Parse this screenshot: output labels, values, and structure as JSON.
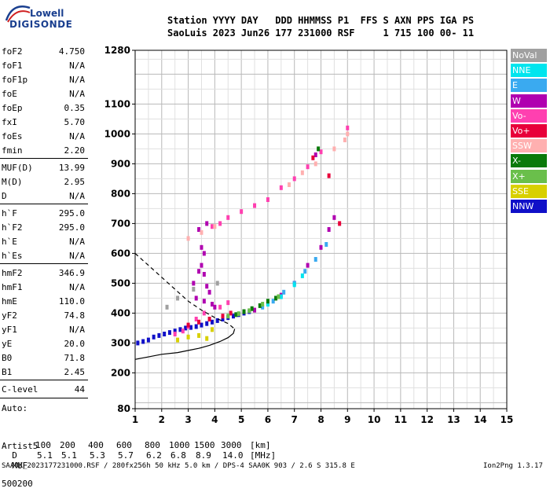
{
  "logo": {
    "top": "Lowell",
    "bottom": "DIGISONDE"
  },
  "header": {
    "line1": "Station YYYY DAY   DDD HHMMSS P1  FFS S AXN PPS IGA PS",
    "line2": "SaoLuis 2023 Jun26 177 231000 RSF     1 715 100 00- 11"
  },
  "params": [
    {
      "name": "foF2",
      "value": "4.750"
    },
    {
      "name": "foF1",
      "value": "N/A"
    },
    {
      "name": "foF1p",
      "value": "N/A"
    },
    {
      "name": "foE",
      "value": "N/A"
    },
    {
      "name": "foEp",
      "value": "0.35"
    },
    {
      "name": "fxI",
      "value": "5.70"
    },
    {
      "name": "foEs",
      "value": "N/A"
    },
    {
      "name": "fmin",
      "value": "2.20"
    },
    {
      "name": "MUF(D)",
      "value": "13.99"
    },
    {
      "name": "M(D)",
      "value": "2.95"
    },
    {
      "name": "D",
      "value": "N/A"
    },
    {
      "name": "h`F",
      "value": "295.0"
    },
    {
      "name": "h`F2",
      "value": "295.0"
    },
    {
      "name": "h`E",
      "value": "N/A"
    },
    {
      "name": "h`Es",
      "value": "N/A"
    },
    {
      "name": "hmF2",
      "value": "346.9"
    },
    {
      "name": "hmF1",
      "value": "N/A"
    },
    {
      "name": "hmE",
      "value": "110.0"
    },
    {
      "name": "yF2",
      "value": "74.8"
    },
    {
      "name": "yF1",
      "value": "N/A"
    },
    {
      "name": "yE",
      "value": "20.0"
    },
    {
      "name": "B0",
      "value": "71.8"
    },
    {
      "name": "B1",
      "value": "2.45"
    },
    {
      "name": "C-level",
      "value": "44"
    }
  ],
  "auto": {
    "line1": "Auto:",
    "line2": "Artist5",
    "line3": "500200"
  },
  "legend": [
    {
      "label": "NoVal",
      "color": "#a0a0a0"
    },
    {
      "label": "NNE",
      "color": "#00e5ee"
    },
    {
      "label": "E",
      "color": "#3aaaf0"
    },
    {
      "label": "W",
      "color": "#b000b0"
    },
    {
      "label": "Vo-",
      "color": "#ff40b0"
    },
    {
      "label": "Vo+",
      "color": "#e8003a"
    },
    {
      "label": "SSW",
      "color": "#ffb0b0"
    },
    {
      "label": "X-",
      "color": "#0a7a0a"
    },
    {
      "label": "X+",
      "color": "#6abf4b"
    },
    {
      "label": "SSE",
      "color": "#d8d000"
    },
    {
      "label": "NNW",
      "color": "#1010c8"
    }
  ],
  "muf_table": {
    "d_label": "D",
    "d_values": [
      "100",
      "200",
      "400",
      "600",
      "800",
      "1000",
      "1500",
      "3000"
    ],
    "d_unit": "[km]",
    "muf_label": "MUF",
    "muf_values": [
      "5.1",
      "5.1",
      "5.3",
      "5.7",
      "6.2",
      "6.8",
      "8.9",
      "14.0"
    ],
    "muf_unit": "[MHz]"
  },
  "footer": {
    "left": "SAA0K_2023177231000.RSF / 280fx256h 50 kHz 5.0 km / DPS-4 SAA0K 903 / 2.6 S 315.8 E",
    "right": "Ion2Png 1.3.17"
  },
  "chart_data": {
    "type": "scatter",
    "title": "",
    "xlabel": "",
    "ylabel": "",
    "xlim": [
      1,
      15
    ],
    "ylim": [
      80,
      1280
    ],
    "x_ticks": [
      1,
      2,
      3,
      4,
      5,
      6,
      7,
      8,
      9,
      10,
      11,
      12,
      13,
      14,
      15
    ],
    "y_ticks": [
      80,
      200,
      300,
      400,
      500,
      600,
      700,
      800,
      900,
      1000,
      1100,
      1280
    ],
    "grid": true,
    "series": [
      {
        "color": "#1010c8",
        "points": [
          [
            1.1,
            300
          ],
          [
            1.3,
            305
          ],
          [
            1.5,
            310
          ],
          [
            1.7,
            320
          ],
          [
            1.9,
            325
          ],
          [
            2.1,
            330
          ],
          [
            2.3,
            335
          ],
          [
            2.5,
            340
          ],
          [
            2.7,
            345
          ],
          [
            2.9,
            350
          ],
          [
            3.1,
            352
          ],
          [
            3.3,
            355
          ],
          [
            3.5,
            360
          ],
          [
            3.7,
            365
          ],
          [
            3.9,
            370
          ],
          [
            4.1,
            375
          ],
          [
            4.3,
            380
          ],
          [
            4.5,
            385
          ],
          [
            4.7,
            390
          ],
          [
            4.9,
            395
          ],
          [
            5.1,
            400
          ],
          [
            5.3,
            405
          ]
        ]
      },
      {
        "color": "#b000b0",
        "points": [
          [
            3.2,
            500
          ],
          [
            3.4,
            540
          ],
          [
            3.5,
            560
          ],
          [
            3.6,
            530
          ],
          [
            3.7,
            490
          ],
          [
            3.8,
            470
          ],
          [
            3.3,
            450
          ],
          [
            3.6,
            440
          ],
          [
            3.9,
            430
          ],
          [
            4.0,
            420
          ],
          [
            3.5,
            620
          ],
          [
            3.6,
            600
          ],
          [
            3.7,
            700
          ],
          [
            3.4,
            680
          ],
          [
            7.8,
            930
          ],
          [
            5.5,
            410
          ],
          [
            6.0,
            430
          ],
          [
            6.5,
            460
          ],
          [
            7.0,
            500
          ],
          [
            7.5,
            560
          ],
          [
            8.0,
            620
          ],
          [
            8.3,
            680
          ],
          [
            8.5,
            720
          ]
        ]
      },
      {
        "color": "#ff40b0",
        "points": [
          [
            2.5,
            330
          ],
          [
            2.8,
            340
          ],
          [
            3.0,
            355
          ],
          [
            3.3,
            380
          ],
          [
            3.6,
            400
          ],
          [
            4.2,
            420
          ],
          [
            4.5,
            435
          ],
          [
            3.9,
            690
          ],
          [
            4.2,
            700
          ],
          [
            4.5,
            720
          ],
          [
            5.0,
            740
          ],
          [
            5.5,
            760
          ],
          [
            6.0,
            780
          ],
          [
            6.5,
            820
          ],
          [
            7.0,
            850
          ],
          [
            7.5,
            890
          ],
          [
            8.0,
            940
          ],
          [
            9.0,
            1020
          ]
        ]
      },
      {
        "color": "#e8003a",
        "points": [
          [
            3.0,
            360
          ],
          [
            3.4,
            370
          ],
          [
            3.8,
            380
          ],
          [
            4.3,
            390
          ],
          [
            4.6,
            400
          ],
          [
            7.7,
            920
          ],
          [
            8.3,
            860
          ],
          [
            8.7,
            700
          ]
        ]
      },
      {
        "color": "#3aaaf0",
        "points": [
          [
            5.8,
            420
          ],
          [
            6.2,
            440
          ],
          [
            6.6,
            470
          ],
          [
            7.0,
            500
          ],
          [
            7.4,
            540
          ],
          [
            7.8,
            580
          ],
          [
            8.2,
            630
          ]
        ]
      },
      {
        "color": "#00e5ee",
        "points": [
          [
            6.0,
            430
          ],
          [
            6.5,
            455
          ],
          [
            7.0,
            495
          ],
          [
            7.3,
            525
          ]
        ]
      },
      {
        "color": "#0a7a0a",
        "points": [
          [
            4.8,
            395
          ],
          [
            5.1,
            405
          ],
          [
            5.4,
            415
          ],
          [
            5.7,
            425
          ],
          [
            6.0,
            440
          ],
          [
            6.3,
            450
          ],
          [
            7.9,
            950
          ]
        ]
      },
      {
        "color": "#6abf4b",
        "points": [
          [
            4.5,
            390
          ],
          [
            4.9,
            398
          ],
          [
            5.3,
            408
          ],
          [
            5.8,
            430
          ],
          [
            6.4,
            455
          ]
        ]
      },
      {
        "color": "#d8d000",
        "points": [
          [
            2.6,
            310
          ],
          [
            3.0,
            320
          ],
          [
            3.4,
            325
          ],
          [
            3.7,
            315
          ],
          [
            3.9,
            345
          ]
        ]
      },
      {
        "color": "#ffb0b0",
        "points": [
          [
            3.0,
            650
          ],
          [
            3.5,
            670
          ],
          [
            4.0,
            690
          ],
          [
            6.8,
            830
          ],
          [
            7.3,
            870
          ],
          [
            7.8,
            900
          ],
          [
            8.5,
            950
          ],
          [
            8.9,
            980
          ],
          [
            9.0,
            1000
          ]
        ]
      },
      {
        "color": "#a0a0a0",
        "points": [
          [
            2.2,
            420
          ],
          [
            2.6,
            450
          ],
          [
            3.2,
            480
          ],
          [
            4.1,
            500
          ]
        ]
      }
    ],
    "profile": [
      [
        1.0,
        245
      ],
      [
        2.0,
        262
      ],
      [
        2.6,
        268
      ],
      [
        3.0,
        275
      ],
      [
        3.4,
        282
      ],
      [
        3.8,
        292
      ],
      [
        4.2,
        305
      ],
      [
        4.5,
        318
      ],
      [
        4.7,
        332
      ],
      [
        4.75,
        347
      ]
    ],
    "profile_dashed": [
      [
        1.0,
        600
      ],
      [
        1.5,
        560
      ],
      [
        2.0,
        520
      ],
      [
        2.5,
        480
      ],
      [
        3.0,
        440
      ],
      [
        3.5,
        410
      ],
      [
        4.0,
        385
      ],
      [
        4.5,
        365
      ],
      [
        4.75,
        347
      ]
    ]
  }
}
